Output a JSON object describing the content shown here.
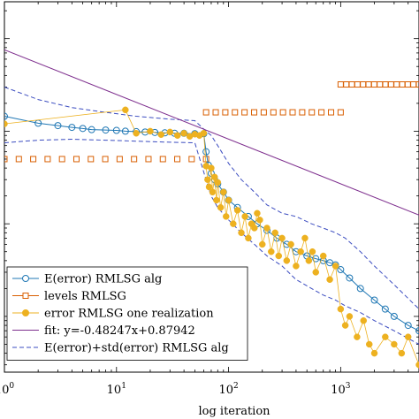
{
  "chart_data": {
    "type": "scatter",
    "xscale": "log",
    "yscale": "log",
    "xlabel": "log iteration",
    "ylabel": "",
    "xlim": [
      1,
      5000
    ],
    "ylim": [
      0.0025,
      25
    ],
    "xticks": [
      {
        "value": 1,
        "base": "10",
        "exp": "0"
      },
      {
        "value": 10,
        "base": "10",
        "exp": "1"
      },
      {
        "value": 100,
        "base": "10",
        "exp": "2"
      },
      {
        "value": 1000,
        "base": "10",
        "exp": "3"
      }
    ],
    "legend_position": "bottom-left",
    "series": [
      {
        "name": "E(error) RMLSG alg",
        "style": "line-circle-open",
        "color": "#1f77b4",
        "x": [
          1,
          2,
          3,
          4,
          5,
          6,
          8,
          10,
          12,
          15,
          18,
          22,
          27,
          33,
          40,
          50,
          60,
          63,
          66,
          70,
          75,
          80,
          90,
          100,
          120,
          150,
          180,
          220,
          270,
          330,
          400,
          500,
          600,
          700,
          800,
          900,
          1000,
          1200,
          1500,
          2000,
          2500,
          3000,
          4000,
          5000
        ],
        "y": [
          1.45,
          1.22,
          1.15,
          1.1,
          1.07,
          1.04,
          1.03,
          1.02,
          1.0,
          0.99,
          0.98,
          0.97,
          0.96,
          0.95,
          0.95,
          0.94,
          0.94,
          0.6,
          0.43,
          0.35,
          0.3,
          0.27,
          0.22,
          0.18,
          0.15,
          0.12,
          0.1,
          0.085,
          0.07,
          0.06,
          0.05,
          0.045,
          0.042,
          0.04,
          0.038,
          0.036,
          0.032,
          0.026,
          0.02,
          0.015,
          0.012,
          0.01,
          0.008,
          0.007
        ]
      },
      {
        "name": "levels RMLSG",
        "style": "square-open",
        "color": "#d95f02",
        "segments": [
          {
            "x_from": 1,
            "x_to": 63,
            "y": 0.5
          },
          {
            "x_from": 63,
            "x_to": 1000,
            "y": 1.6
          },
          {
            "x_from": 1000,
            "x_to": 5000,
            "y": 3.2
          }
        ]
      },
      {
        "name": "error RMLSG one realization",
        "style": "line-dot-filled",
        "color": "#edb120",
        "x": [
          1,
          12,
          15,
          20,
          25,
          30,
          35,
          40,
          45,
          50,
          55,
          60,
          63,
          65,
          67,
          70,
          72,
          75,
          78,
          80,
          85,
          90,
          95,
          100,
          110,
          120,
          130,
          140,
          150,
          160,
          170,
          180,
          190,
          200,
          220,
          240,
          260,
          280,
          300,
          330,
          360,
          400,
          440,
          480,
          520,
          560,
          600,
          700,
          800,
          900,
          1000,
          1100,
          1200,
          1400,
          1600,
          1800,
          2000,
          2500,
          3000,
          3500,
          4000,
          5000
        ],
        "y": [
          1.2,
          1.7,
          0.95,
          1.0,
          0.92,
          0.98,
          0.9,
          0.95,
          0.88,
          0.93,
          0.9,
          0.95,
          0.42,
          0.3,
          0.25,
          0.4,
          0.22,
          0.32,
          0.18,
          0.28,
          0.15,
          0.22,
          0.12,
          0.18,
          0.1,
          0.14,
          0.08,
          0.12,
          0.07,
          0.1,
          0.09,
          0.13,
          0.11,
          0.06,
          0.09,
          0.05,
          0.08,
          0.045,
          0.07,
          0.04,
          0.06,
          0.035,
          0.05,
          0.07,
          0.04,
          0.05,
          0.03,
          0.045,
          0.025,
          0.035,
          0.012,
          0.008,
          0.01,
          0.006,
          0.009,
          0.005,
          0.004,
          0.006,
          0.005,
          0.004,
          0.006,
          0.003
        ]
      },
      {
        "name": "fit:  y=-0.48247x+0.87942",
        "style": "line",
        "color": "#7e2f8e",
        "slope": -0.48247,
        "intercept": 0.87942
      },
      {
        "name": "E(error)+std(error) RMLSG alg",
        "style": "dashed",
        "color": "#3b4cc0",
        "upper": {
          "x": [
            1,
            2,
            4,
            8,
            15,
            30,
            50,
            63,
            70,
            80,
            100,
            130,
            170,
            220,
            300,
            400,
            550,
            700,
            900,
            1100,
            1500,
            2000,
            3000,
            5000
          ],
          "y": [
            3.0,
            2.2,
            1.8,
            1.6,
            1.45,
            1.35,
            1.3,
            1.0,
            0.9,
            0.7,
            0.45,
            0.3,
            0.22,
            0.16,
            0.13,
            0.12,
            0.1,
            0.09,
            0.08,
            0.07,
            0.05,
            0.035,
            0.022,
            0.012
          ]
        },
        "lower": {
          "x": [
            1,
            2,
            4,
            8,
            15,
            30,
            50,
            63,
            70,
            80,
            100,
            130,
            170,
            220,
            300,
            400,
            550,
            700,
            900,
            1100,
            1500,
            2000,
            3000,
            5000
          ],
          "y": [
            0.75,
            0.8,
            0.82,
            0.8,
            0.78,
            0.76,
            0.75,
            0.3,
            0.2,
            0.15,
            0.11,
            0.08,
            0.06,
            0.045,
            0.035,
            0.025,
            0.02,
            0.017,
            0.015,
            0.013,
            0.011,
            0.009,
            0.007,
            0.005
          ]
        }
      }
    ]
  }
}
